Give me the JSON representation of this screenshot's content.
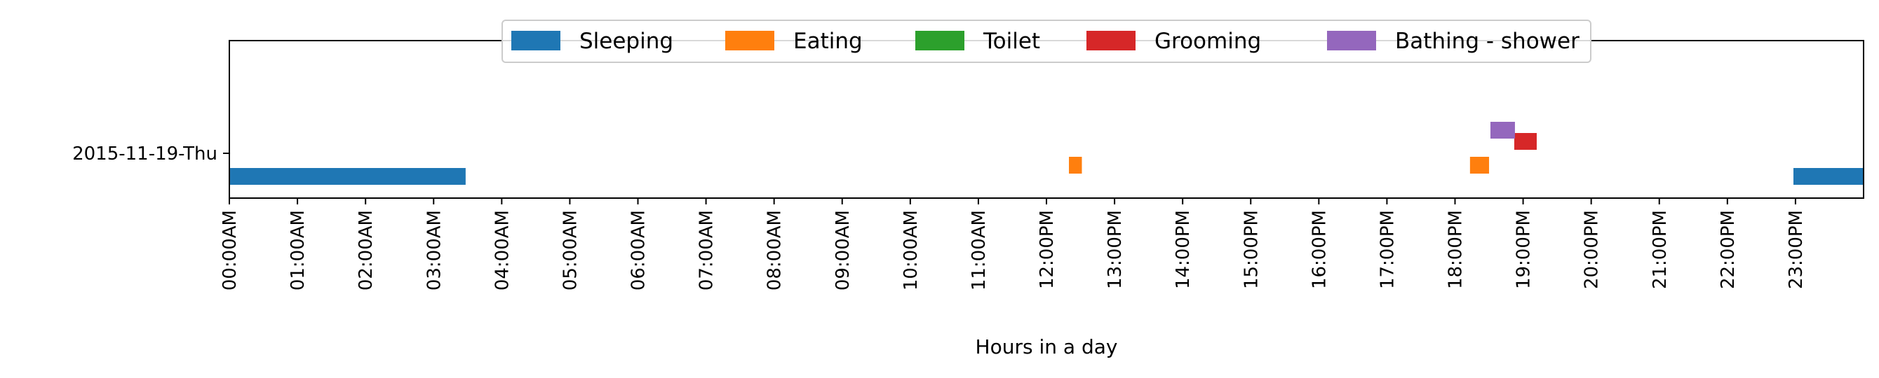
{
  "chart_data": {
    "type": "bar",
    "orientation": "horizontal-timeline",
    "title": "",
    "xlabel": "Hours in a day",
    "ylabel": "",
    "xlim": [
      0,
      24
    ],
    "x_tick_labels": [
      "00:00AM",
      "01:00AM",
      "02:00AM",
      "03:00AM",
      "04:00AM",
      "05:00AM",
      "06:00AM",
      "07:00AM",
      "08:00AM",
      "09:00AM",
      "10:00AM",
      "11:00AM",
      "12:00PM",
      "13:00PM",
      "14:00PM",
      "15:00PM",
      "16:00PM",
      "17:00PM",
      "18:00PM",
      "19:00PM",
      "20:00PM",
      "21:00PM",
      "22:00PM",
      "23:00PM"
    ],
    "y_tick_labels": [
      "2015-11-19-Thu"
    ],
    "grid": false,
    "legend_position": "top-center",
    "series": [
      {
        "name": "Sleeping",
        "color": "#1f77b4",
        "lane": 0,
        "intervals": [
          [
            0.0,
            3.47
          ],
          [
            22.97,
            24.0
          ]
        ]
      },
      {
        "name": "Eating",
        "color": "#ff7f0e",
        "lane": 1,
        "intervals": [
          [
            12.33,
            12.52
          ],
          [
            18.22,
            18.5
          ]
        ]
      },
      {
        "name": "Toilet",
        "color": "#2ca02c",
        "lane": 2,
        "intervals": []
      },
      {
        "name": "Grooming",
        "color": "#d62728",
        "lane": 3,
        "intervals": [
          [
            18.87,
            19.2
          ]
        ]
      },
      {
        "name": "Bathing - shower",
        "color": "#9467bd",
        "lane": 4,
        "intervals": [
          [
            18.52,
            18.88
          ]
        ]
      }
    ]
  }
}
